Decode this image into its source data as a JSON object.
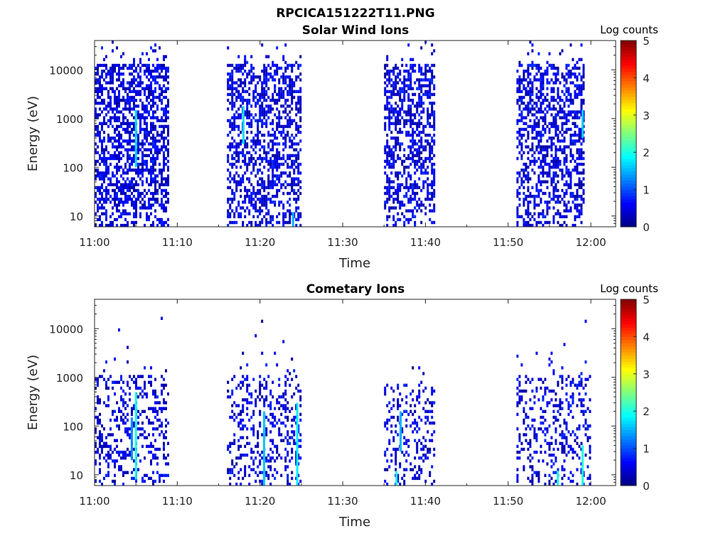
{
  "figure": {
    "title": "RPCICA151222T11.PNG"
  },
  "chart_data": [
    {
      "type": "heatmap",
      "title": "Solar Wind Ions",
      "xlabel": "Time",
      "ylabel": "Energy (eV)",
      "x_range": [
        "11:00",
        "12:03"
      ],
      "x_ticks": [
        "11:00",
        "11:10",
        "11:20",
        "11:30",
        "11:40",
        "11:50",
        "12:00"
      ],
      "y_scale": "log",
      "y_range": [
        6,
        40000
      ],
      "y_ticks": [
        "10",
        "100",
        "1000",
        "10000"
      ],
      "colorbar": {
        "label": "Log counts",
        "range": [
          0,
          5
        ],
        "ticks": [
          "0",
          "1",
          "2",
          "3",
          "4",
          "5"
        ],
        "colormap": "jet"
      },
      "grid": false,
      "bursts": [
        {
          "start": "11:00",
          "end": "11:09",
          "max_energy_eV": 13000,
          "density": 0.55,
          "streaks": [
            {
              "time": "11:05",
              "from_eV": 100,
              "to_eV": 1500,
              "level": 1.7
            }
          ]
        },
        {
          "start": "11:16",
          "end": "11:25",
          "max_energy_eV": 13000,
          "density": 0.5,
          "streaks": [
            {
              "time": "11:18",
              "from_eV": 300,
              "to_eV": 1800,
              "level": 1.7
            },
            {
              "time": "11:24",
              "from_eV": 6,
              "to_eV": 12,
              "level": 1.5
            }
          ]
        },
        {
          "start": "11:35",
          "end": "11:41",
          "max_energy_eV": 13000,
          "density": 0.5,
          "streaks": []
        },
        {
          "start": "11:51",
          "end": "11:59",
          "max_energy_eV": 13000,
          "density": 0.5,
          "streaks": [
            {
              "time": "11:59",
              "from_eV": 400,
              "to_eV": 1500,
              "level": 1.6
            }
          ]
        }
      ]
    },
    {
      "type": "heatmap",
      "title": "Cometary Ions",
      "xlabel": "Time",
      "ylabel": "Energy (eV)",
      "x_range": [
        "11:00",
        "12:03"
      ],
      "x_ticks": [
        "11:00",
        "11:10",
        "11:20",
        "11:30",
        "11:40",
        "11:50",
        "12:00"
      ],
      "y_scale": "log",
      "y_range": [
        6,
        40000
      ],
      "y_ticks": [
        "10",
        "100",
        "1000",
        "10000"
      ],
      "colorbar": {
        "label": "Log counts",
        "range": [
          0,
          5
        ],
        "ticks": [
          "0",
          "1",
          "2",
          "3",
          "4",
          "5"
        ],
        "colormap": "jet"
      },
      "grid": false,
      "bursts": [
        {
          "start": "11:00",
          "end": "11:09",
          "max_energy_eV": 1000,
          "density": 0.3,
          "streaks": [
            {
              "time": "11:05",
              "from_eV": 8,
              "to_eV": 500,
              "level": 2.0
            },
            {
              "time": "11:04.5",
              "from_eV": 20,
              "to_eV": 150,
              "level": 1.3
            }
          ]
        },
        {
          "start": "11:16",
          "end": "11:25",
          "max_energy_eV": 1000,
          "density": 0.3,
          "streaks": [
            {
              "time": "11:20.5",
              "from_eV": 6,
              "to_eV": 200,
              "level": 1.6
            },
            {
              "time": "11:24.5",
              "from_eV": 6,
              "to_eV": 300,
              "level": 1.8
            }
          ]
        },
        {
          "start": "11:35",
          "end": "11:41",
          "max_energy_eV": 700,
          "density": 0.25,
          "streaks": [
            {
              "time": "11:36.5",
              "from_eV": 6,
              "to_eV": 12,
              "level": 2.0
            },
            {
              "time": "11:37",
              "from_eV": 30,
              "to_eV": 200,
              "level": 1.5
            }
          ]
        },
        {
          "start": "11:51",
          "end": "12:00",
          "max_energy_eV": 1000,
          "density": 0.25,
          "streaks": [
            {
              "time": "11:56",
              "from_eV": 6,
              "to_eV": 12,
              "level": 2.0
            },
            {
              "time": "11:59",
              "from_eV": 6,
              "to_eV": 40,
              "level": 2.0
            }
          ]
        }
      ]
    }
  ]
}
